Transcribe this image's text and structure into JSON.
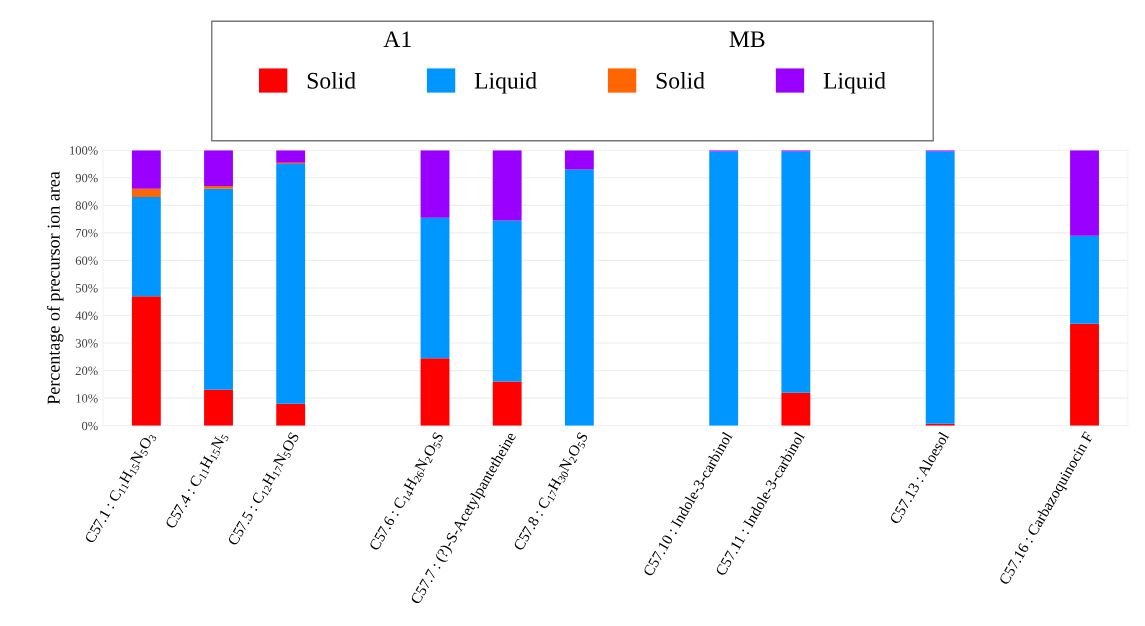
{
  "chart_data": {
    "type": "bar",
    "stacked": true,
    "ylabel": "Percentage of precursor ion area",
    "categories": [
      "C57.1 : C$_{11}$H$_{15}$N$_{5}$O$_{3}$",
      "C57.4 : C$_{11}$H$_{15}$N$_{5}$",
      "C57.5 : C$_{12}$H$_{17}$N$_{5}$OS",
      null,
      "C57.6 : C$_{14}$H$_{26}$N$_{2}$O$_{5}$S",
      "C57.7 : (?)-S-Acetylpantetheine",
      "C57.8 : C$_{17}$H$_{30}$N$_{2}$O$_{5}$S",
      null,
      "C57.10 : Indole-3-carbinol",
      "C57.11 : Indole-3-carbinol",
      null,
      "C57.13 : Aloesol",
      null,
      "C57.16 : Carbazoquinocin F"
    ],
    "series": [
      {
        "name": "Solid",
        "color": "#ff0000",
        "values": [
          47,
          13,
          8,
          null,
          24.5,
          16,
          0,
          null,
          0,
          12,
          null,
          0.7,
          null,
          37
        ]
      },
      {
        "name": "Liquid",
        "color": "#0096ff",
        "values": [
          36,
          73,
          87,
          null,
          51,
          58.5,
          93,
          null,
          99.5,
          87.5,
          null,
          98.8,
          null,
          32
        ]
      },
      {
        "name": "Solid",
        "color": "#ff6600",
        "values": [
          3,
          1,
          0.5,
          null,
          0,
          0,
          0,
          null,
          0,
          0,
          null,
          0,
          null,
          0
        ]
      },
      {
        "name": "Liquid",
        "color": "#9900ff",
        "values": [
          14,
          13,
          4.5,
          null,
          24.5,
          25.5,
          7,
          null,
          0.5,
          0.5,
          null,
          0.5,
          null,
          31
        ]
      }
    ],
    "annotations": [
      "A1",
      "MB"
    ],
    "ylim": [
      0,
      100
    ],
    "yticks": [
      {
        "value": 0,
        "label": "0%"
      },
      {
        "value": 10,
        "label": "10%"
      },
      {
        "value": 20,
        "label": "20%"
      },
      {
        "value": 30,
        "label": "30%"
      },
      {
        "value": 40,
        "label": "40%"
      },
      {
        "value": 50,
        "label": "50%"
      },
      {
        "value": 60,
        "label": "60%"
      },
      {
        "value": 70,
        "label": "70%"
      },
      {
        "value": 80,
        "label": "80%"
      },
      {
        "value": 90,
        "label": "90%"
      },
      {
        "value": 100,
        "label": "100%"
      }
    ],
    "grid": "y",
    "legend": "top"
  }
}
